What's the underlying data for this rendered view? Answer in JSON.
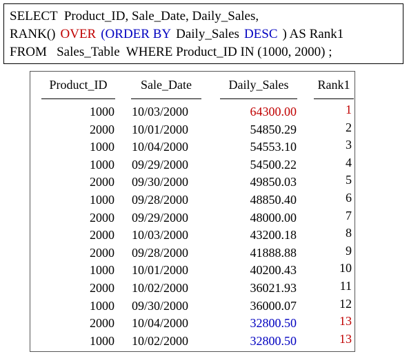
{
  "query": {
    "lines": [
      [
        {
          "text": "SELECT  Product_ID, Sale_Date, Daily_Sales,",
          "color": "#000000"
        }
      ],
      [
        {
          "text": "RANK()",
          "color": "#000000"
        },
        {
          "text": "OVER",
          "color": "#c00000"
        },
        {
          "text": "(ORDER BY",
          "color": "#0000c0"
        },
        {
          "text": "Daily_Sales",
          "color": "#000000"
        },
        {
          "text": "DESC",
          "color": "#0000c0"
        },
        {
          "text": ") AS Rank1",
          "color": "#000000"
        }
      ],
      [
        {
          "text": "FROM   Sales_Table  WHERE Product_ID IN (1000, 2000) ;",
          "color": "#000000"
        }
      ]
    ]
  },
  "table": {
    "headers": [
      "Product_ID",
      "Sale_Date",
      "Daily_Sales",
      "Rank1"
    ],
    "rows": [
      [
        "1000",
        "10/03/2000",
        "64300.00",
        "1"
      ],
      [
        "2000",
        "10/01/2000",
        "54850.29",
        "2"
      ],
      [
        "1000",
        "10/04/2000",
        "54553.10",
        "3"
      ],
      [
        "1000",
        "09/29/2000",
        "54500.22",
        "4"
      ],
      [
        "2000",
        "09/30/2000",
        "49850.03",
        "5"
      ],
      [
        "1000",
        "09/28/2000",
        "48850.40",
        "6"
      ],
      [
        "2000",
        "09/29/2000",
        "48000.00",
        "7"
      ],
      [
        "2000",
        "10/03/2000",
        "43200.18",
        "8"
      ],
      [
        "2000",
        "09/28/2000",
        "41888.88",
        "9"
      ],
      [
        "1000",
        "10/01/2000",
        "40200.43",
        "10"
      ],
      [
        "2000",
        "10/02/2000",
        "36021.93",
        "11"
      ],
      [
        "1000",
        "09/30/2000",
        "36000.07",
        "12"
      ],
      [
        "2000",
        "10/04/2000",
        "32800.50",
        "13"
      ],
      [
        "1000",
        "10/02/2000",
        "32800.50",
        "13"
      ]
    ],
    "sales_colors": [
      "#c00000",
      "#000000",
      "#000000",
      "#000000",
      "#000000",
      "#000000",
      "#000000",
      "#000000",
      "#000000",
      "#000000",
      "#000000",
      "#000000",
      "#0000c0",
      "#0000c0"
    ],
    "rank_colors": [
      "#c00000",
      "#000000",
      "#000000",
      "#000000",
      "#000000",
      "#000000",
      "#000000",
      "#000000",
      "#000000",
      "#000000",
      "#000000",
      "#000000",
      "#c00000",
      "#c00000"
    ]
  }
}
